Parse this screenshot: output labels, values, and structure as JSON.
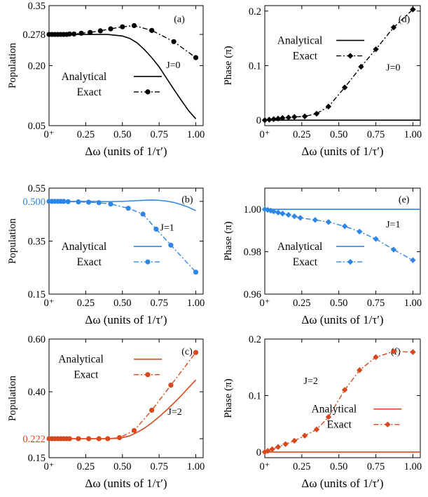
{
  "colors": {
    "black": "#000000",
    "blue": "#2f86e6",
    "red": "#d9481c"
  },
  "charts": [
    {
      "panel": "(a)",
      "quantity": "population",
      "color": "#000000",
      "title": "",
      "ylabel": "Population",
      "xlabel": "Δω (units of 1/τ′)",
      "xlim": [
        0,
        1.05
      ],
      "ylim": [
        0.05,
        0.35
      ],
      "xticks": [
        0,
        0.25,
        0.5,
        0.75,
        1.0
      ],
      "xtick_labels": [
        "0⁺",
        "0.25",
        "0.50",
        "0.75",
        "1.00"
      ],
      "yticks": [
        0.05,
        0.2,
        0.278,
        0.35
      ],
      "ytick_labels": [
        "0.05",
        "0.20",
        "0.278",
        "0.35"
      ],
      "highlight_tick": "",
      "annotation": "J=0",
      "legend": [
        "Analytical",
        "Exact"
      ],
      "analytical": {
        "x": [
          0,
          0.1,
          0.2,
          0.3,
          0.4,
          0.5,
          0.55,
          0.6,
          0.65,
          0.7,
          0.75,
          0.8,
          0.85,
          0.9,
          0.95,
          1.0
        ],
        "y": [
          0.278,
          0.278,
          0.278,
          0.278,
          0.278,
          0.274,
          0.268,
          0.257,
          0.24,
          0.22,
          0.197,
          0.169,
          0.141,
          0.114,
          0.088,
          0.067
        ]
      },
      "exact": {
        "x": [
          0,
          0.02,
          0.04,
          0.06,
          0.08,
          0.1,
          0.12,
          0.14,
          0.17,
          0.22,
          0.28,
          0.35,
          0.42,
          0.5,
          0.58,
          0.7,
          0.85,
          1.0
        ],
        "y": [
          0.278,
          0.278,
          0.278,
          0.278,
          0.278,
          0.278,
          0.278,
          0.279,
          0.279,
          0.281,
          0.283,
          0.287,
          0.292,
          0.297,
          0.3,
          0.288,
          0.26,
          0.22
        ]
      }
    },
    {
      "panel": "(b)",
      "quantity": "population",
      "color": "#2f86e6",
      "title": "",
      "ylabel": "Population",
      "xlabel": "Δω (units of 1/τ′)",
      "xlim": [
        0,
        1.05
      ],
      "ylim": [
        0.15,
        0.55
      ],
      "xticks": [
        0,
        0.25,
        0.5,
        0.75,
        1.0
      ],
      "xtick_labels": [
        "0⁺",
        "0.25",
        "0.50",
        "0.75",
        "1.00"
      ],
      "yticks": [
        0.15,
        0.35,
        0.5,
        0.55
      ],
      "ytick_labels": [
        "0.15",
        "0.35",
        "0.500",
        "0.55"
      ],
      "highlight_tick": "0.500",
      "annotation": "J=1",
      "legend": [
        "Analytical",
        "Exact"
      ],
      "analytical": {
        "x": [
          0,
          0.1,
          0.2,
          0.3,
          0.4,
          0.5,
          0.6,
          0.7,
          0.75,
          0.8,
          0.85,
          0.9,
          0.95,
          1.0
        ],
        "y": [
          0.5,
          0.5,
          0.5,
          0.5,
          0.499,
          0.5,
          0.503,
          0.505,
          0.504,
          0.501,
          0.496,
          0.488,
          0.478,
          0.465
        ]
      },
      "exact": {
        "x": [
          0,
          0.02,
          0.04,
          0.06,
          0.08,
          0.1,
          0.13,
          0.2,
          0.27,
          0.34,
          0.42,
          0.54,
          0.64,
          0.73,
          0.83,
          1.0
        ],
        "y": [
          0.5,
          0.5,
          0.5,
          0.5,
          0.5,
          0.5,
          0.499,
          0.498,
          0.497,
          0.495,
          0.49,
          0.474,
          0.452,
          0.395,
          0.335,
          0.233
        ]
      }
    },
    {
      "panel": "(c)",
      "quantity": "population",
      "color": "#d9481c",
      "title": "",
      "ylabel": "Population",
      "xlabel": "Δω (units of 1/τ′)",
      "xlim": [
        0,
        1.05
      ],
      "ylim": [
        0.15,
        0.6
      ],
      "xticks": [
        0,
        0.25,
        0.5,
        0.75,
        1.0
      ],
      "xtick_labels": [
        "0⁺",
        "0.25",
        "0.50",
        "0.75",
        "1.00"
      ],
      "yticks": [
        0.15,
        0.222,
        0.4,
        0.6
      ],
      "ytick_labels": [
        "0.15",
        "0.222",
        "0.40",
        "0.60"
      ],
      "highlight_tick": "0.222",
      "annotation": "J=2",
      "legend": [
        "Analytical",
        "Exact"
      ],
      "analytical": {
        "x": [
          0,
          0.1,
          0.2,
          0.3,
          0.4,
          0.45,
          0.5,
          0.55,
          0.6,
          0.65,
          0.7,
          0.75,
          0.8,
          0.85,
          0.9,
          0.95,
          1.0
        ],
        "y": [
          0.222,
          0.222,
          0.222,
          0.222,
          0.222,
          0.223,
          0.226,
          0.233,
          0.246,
          0.262,
          0.282,
          0.305,
          0.33,
          0.357,
          0.385,
          0.415,
          0.445
        ]
      },
      "exact": {
        "x": [
          0,
          0.02,
          0.04,
          0.06,
          0.08,
          0.1,
          0.12,
          0.14,
          0.2,
          0.27,
          0.34,
          0.4,
          0.48,
          0.58,
          0.7,
          0.83,
          1.0
        ],
        "y": [
          0.222,
          0.222,
          0.222,
          0.222,
          0.222,
          0.222,
          0.222,
          0.222,
          0.222,
          0.222,
          0.222,
          0.222,
          0.226,
          0.253,
          0.33,
          0.425,
          0.549
        ]
      }
    },
    {
      "panel": "(d)",
      "quantity": "phase",
      "color": "#000000",
      "title": "",
      "ylabel": "Phase (π)",
      "xlabel": "Δω (units of 1/τ′)",
      "xlim": [
        0,
        1.05
      ],
      "ylim": [
        -0.01,
        0.21
      ],
      "xticks": [
        0,
        0.25,
        0.5,
        0.75,
        1.0
      ],
      "xtick_labels": [
        "0⁺",
        "0.25",
        "0.50",
        "0.75",
        "1.00"
      ],
      "yticks": [
        0,
        0.1,
        0.2
      ],
      "ytick_labels": [
        "0",
        "0.1",
        "0.2"
      ],
      "highlight_tick": "",
      "annotation": "J=0",
      "legend": [
        "Analytical",
        "Exact"
      ],
      "analytical": {
        "x": [
          0,
          1.05
        ],
        "y": [
          0,
          0
        ]
      },
      "exact": {
        "x": [
          0,
          0.03,
          0.06,
          0.09,
          0.12,
          0.16,
          0.2,
          0.27,
          0.35,
          0.43,
          0.54,
          0.65,
          0.75,
          0.87,
          1.0
        ],
        "y": [
          0.0,
          0.001,
          0.002,
          0.003,
          0.004,
          0.005,
          0.006,
          0.007,
          0.012,
          0.025,
          0.06,
          0.098,
          0.13,
          0.17,
          0.203
        ]
      }
    },
    {
      "panel": "(e)",
      "quantity": "phase",
      "color": "#2f86e6",
      "title": "",
      "ylabel": "Phase (π)",
      "xlabel": "Δω (units of 1/τ′)",
      "xlim": [
        0,
        1.05
      ],
      "ylim": [
        0.96,
        1.01
      ],
      "xticks": [
        0,
        0.25,
        0.5,
        0.75,
        1.0
      ],
      "xtick_labels": [
        "0⁺",
        "0.25",
        "0.50",
        "0.75",
        "1.00"
      ],
      "yticks": [
        0.96,
        0.98,
        1.0
      ],
      "ytick_labels": [
        "0.96",
        "0.98",
        "1.00"
      ],
      "highlight_tick": "",
      "annotation": "J=1",
      "legend": [
        "Analytical",
        "Exact"
      ],
      "analytical": {
        "x": [
          0,
          1.05
        ],
        "y": [
          1.0,
          1.0
        ]
      },
      "exact": {
        "x": [
          0,
          0.02,
          0.04,
          0.06,
          0.09,
          0.12,
          0.16,
          0.2,
          0.24,
          0.34,
          0.43,
          0.54,
          0.64,
          0.75,
          0.87,
          1.0
        ],
        "y": [
          1.0,
          0.9997,
          0.9994,
          0.999,
          0.9985,
          0.998,
          0.9974,
          0.9967,
          0.996,
          0.995,
          0.994,
          0.992,
          0.9895,
          0.986,
          0.981,
          0.976
        ]
      }
    },
    {
      "panel": "(f)",
      "quantity": "phase",
      "color": "#d9481c",
      "title": "",
      "ylabel": "Phase (π)",
      "xlabel": "Δω (units of 1/τ′)",
      "xlim": [
        0,
        1.05
      ],
      "ylim": [
        -0.01,
        0.2
      ],
      "xticks": [
        0,
        0.25,
        0.5,
        0.75,
        1.0
      ],
      "xtick_labels": [
        "0⁺",
        "0.25",
        "0.50",
        "0.75",
        "1.00"
      ],
      "yticks": [
        0,
        0.1,
        0.2
      ],
      "ytick_labels": [
        "0",
        "0.1",
        "0.2"
      ],
      "highlight_tick": "",
      "annotation": "J=2",
      "legend": [
        "Analytical",
        "Exact"
      ],
      "analytical": {
        "x": [
          0,
          1.05
        ],
        "y": [
          0,
          0
        ]
      },
      "exact": {
        "x": [
          0,
          0.02,
          0.05,
          0.09,
          0.14,
          0.2,
          0.27,
          0.35,
          0.43,
          0.54,
          0.64,
          0.75,
          0.87,
          1.0
        ],
        "y": [
          0.0,
          0.002,
          0.005,
          0.009,
          0.014,
          0.02,
          0.029,
          0.04,
          0.062,
          0.11,
          0.145,
          0.168,
          0.178,
          0.177
        ]
      }
    }
  ]
}
